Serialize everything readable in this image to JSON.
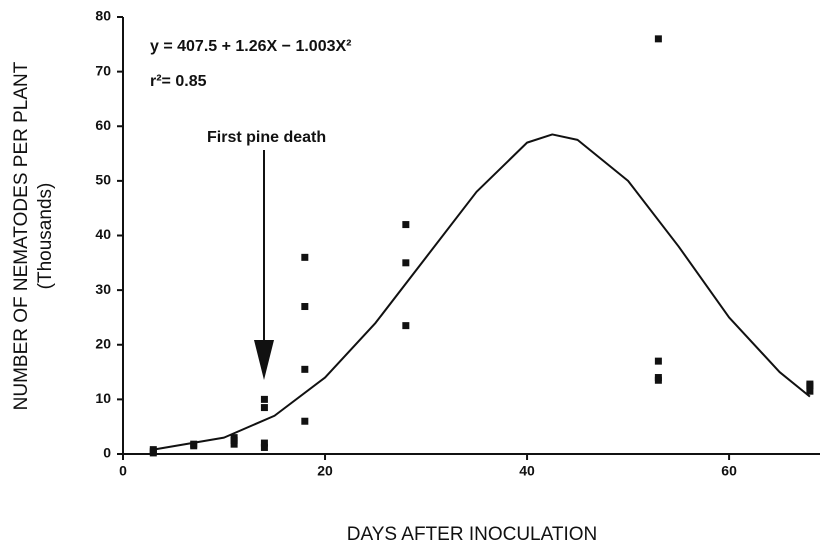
{
  "chart_data": {
    "type": "scatter",
    "x_label": "DAYS AFTER INOCULATION",
    "y_label": [
      "NUMBER OF NEMATODES PER PLANT",
      "(Thousands)"
    ],
    "annotations": [
      "y = 407.5 + 1.26X − 1.003X²",
      "r²= 0.85",
      "First pine death"
    ],
    "xlim": [
      0,
      69
    ],
    "ylim": [
      0,
      80
    ],
    "xticks": [
      0,
      20,
      40,
      60
    ],
    "yticks": [
      0,
      10,
      20,
      30,
      40,
      50,
      60,
      70,
      80
    ],
    "series": [
      {
        "type": "scatter",
        "color": "#111111",
        "x": [
          3,
          3,
          3,
          7,
          7,
          11,
          11,
          11,
          14,
          14,
          14,
          14,
          18,
          18,
          18,
          18,
          28,
          28,
          28,
          53,
          53,
          53,
          53,
          68,
          68,
          68
        ],
        "values": [
          0.2,
          0.5,
          0.8,
          1.5,
          1.8,
          1.8,
          2.5,
          3,
          10,
          8.5,
          2,
          1.2,
          36,
          27,
          15.5,
          6,
          42,
          35,
          23.5,
          76,
          17,
          14,
          13.5,
          12.5,
          11.5,
          12.8
        ]
      },
      {
        "type": "line",
        "color": "#111111",
        "x": [
          3,
          10,
          15,
          20,
          25,
          30,
          35,
          40,
          42.5,
          45,
          50,
          55,
          60,
          65,
          68
        ],
        "values": [
          0.8,
          3,
          7,
          14,
          24,
          36,
          48,
          57,
          58.5,
          57.5,
          50,
          38,
          25,
          15,
          10.5
        ]
      }
    ]
  }
}
